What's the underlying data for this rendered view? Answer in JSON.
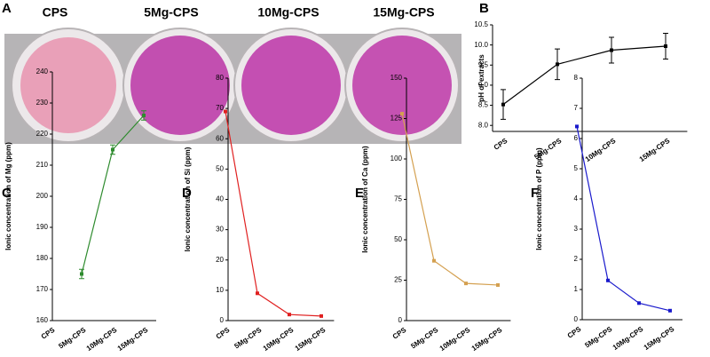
{
  "photo": {
    "panel": "A",
    "labels": [
      "CPS",
      "5Mg-CPS",
      "10Mg-CPS",
      "15Mg-CPS"
    ]
  },
  "chart_data": [
    {
      "type": "line",
      "panel": "B",
      "y_label": "pH of extracts",
      "categories": [
        "CPS",
        "5Mg-CPS",
        "10Mg-CPS",
        "15Mg-CPS"
      ],
      "series": [
        {
          "color": "#000000",
          "values": [
            8.52,
            9.52,
            9.87,
            9.97
          ],
          "errors": [
            0.37,
            0.38,
            0.32,
            0.32
          ]
        }
      ],
      "ylim": [
        7.85,
        10.5
      ],
      "yticks": [
        {
          "value": 8,
          "label": "8.0"
        },
        {
          "value": 8.5,
          "label": "8.5"
        },
        {
          "value": 9,
          "label": "9.0"
        },
        {
          "value": 9.5,
          "label": "9.5"
        },
        {
          "value": 10,
          "label": "10.0"
        },
        {
          "value": 10.5,
          "label": "10.5"
        }
      ]
    },
    {
      "type": "line",
      "panel": "C",
      "y_label": "Ionic concentration of Mg (ppm)",
      "categories": [
        "CPS",
        "5Mg-CPS",
        "10Mg-CPS",
        "15Mg-CPS"
      ],
      "series": [
        {
          "color": "#2e8b2e",
          "values": [
            null,
            175,
            215,
            226
          ],
          "errors": [
            null,
            1.5,
            1.5,
            1.5
          ]
        }
      ],
      "ylim": [
        160,
        240
      ],
      "yticks": [
        160,
        170,
        180,
        190,
        200,
        210,
        220,
        230,
        240
      ]
    },
    {
      "type": "line",
      "panel": "D",
      "y_label": "Ionic concentration of Si (ppm)",
      "categories": [
        "CPS",
        "5Mg-CPS",
        "10Mg-CPS",
        "15Mg-CPS"
      ],
      "series": [
        {
          "color": "#e02020",
          "values": [
            69,
            9,
            2,
            1.5
          ]
        }
      ],
      "ylim": [
        0,
        80
      ],
      "yticks": [
        0,
        10,
        20,
        30,
        40,
        50,
        60,
        70,
        80
      ]
    },
    {
      "type": "line",
      "panel": "E",
      "y_label": "Ionic concentration of Ca (ppm)",
      "categories": [
        "CPS",
        "5Mg-CPS",
        "10Mg-CPS",
        "15Mg-CPS"
      ],
      "series": [
        {
          "color": "#d4a050",
          "values": [
            128,
            37,
            23,
            22
          ]
        }
      ],
      "ylim": [
        0,
        150
      ],
      "yticks": [
        0,
        25,
        50,
        75,
        100,
        125,
        150
      ]
    },
    {
      "type": "line",
      "panel": "F",
      "y_label": "Ionic concentration of P (ppm)",
      "categories": [
        "CPS",
        "5Mg-CPS",
        "10Mg-CPS",
        "15Mg-CPS"
      ],
      "series": [
        {
          "color": "#1a1acc",
          "values": [
            6.4,
            1.3,
            0.55,
            0.3
          ]
        }
      ],
      "ylim": [
        0,
        8
      ],
      "yticks": [
        0,
        1,
        2,
        3,
        4,
        5,
        6,
        7,
        8
      ]
    }
  ]
}
